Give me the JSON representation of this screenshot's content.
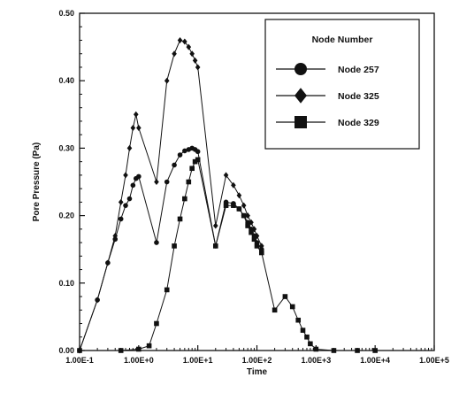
{
  "chart_data": {
    "type": "line",
    "xlabel": "Time",
    "ylabel": "Pore Pressure (Pa)",
    "x_scale": "log",
    "xlim": [
      0.1,
      100000
    ],
    "ylim": [
      0,
      0.5
    ],
    "x_ticks": [
      0.1,
      1,
      10,
      100,
      1000,
      10000,
      100000
    ],
    "x_tick_labels": [
      "1.00E-1",
      "1.00E+0",
      "1.00E+1",
      "1.00E+2",
      "1.00E+3",
      "1.00E+4",
      "1.00E+5"
    ],
    "y_ticks": [
      0,
      0.1,
      0.2,
      0.3,
      0.4,
      0.5
    ],
    "y_tick_labels": [
      "0.00",
      "0.10",
      "0.20",
      "0.30",
      "0.40",
      "0.50"
    ],
    "legend": {
      "title": "Node Number",
      "position": "top-right"
    },
    "series": [
      {
        "name": "Node 257",
        "marker": "circle",
        "points": [
          [
            0.1,
            0.0
          ],
          [
            0.2,
            0.075
          ],
          [
            0.3,
            0.13
          ],
          [
            0.4,
            0.165
          ],
          [
            0.5,
            0.195
          ],
          [
            0.6,
            0.215
          ],
          [
            0.7,
            0.225
          ],
          [
            0.8,
            0.245
          ],
          [
            0.9,
            0.255
          ],
          [
            1.0,
            0.258
          ],
          [
            2.0,
            0.16
          ],
          [
            3.0,
            0.25
          ],
          [
            4.0,
            0.275
          ],
          [
            5.0,
            0.29
          ],
          [
            6.0,
            0.296
          ],
          [
            7.0,
            0.298
          ],
          [
            8.0,
            0.3
          ],
          [
            9.0,
            0.298
          ],
          [
            10.0,
            0.295
          ],
          [
            20.0,
            0.155
          ],
          [
            30.0,
            0.22
          ],
          [
            40.0,
            0.218
          ],
          [
            50.0,
            0.21
          ],
          [
            60.0,
            0.2
          ],
          [
            70.0,
            0.19
          ],
          [
            80.0,
            0.18
          ],
          [
            90.0,
            0.17
          ],
          [
            100.0,
            0.16
          ],
          [
            120.0,
            0.15
          ]
        ]
      },
      {
        "name": "Node 325",
        "marker": "diamond",
        "points": [
          [
            0.1,
            0.0
          ],
          [
            0.2,
            0.075
          ],
          [
            0.3,
            0.13
          ],
          [
            0.4,
            0.17
          ],
          [
            0.5,
            0.22
          ],
          [
            0.6,
            0.26
          ],
          [
            0.7,
            0.3
          ],
          [
            0.8,
            0.33
          ],
          [
            0.9,
            0.35
          ],
          [
            1.0,
            0.33
          ],
          [
            2.0,
            0.25
          ],
          [
            3.0,
            0.4
          ],
          [
            4.0,
            0.44
          ],
          [
            5.0,
            0.46
          ],
          [
            6.0,
            0.458
          ],
          [
            7.0,
            0.45
          ],
          [
            8.0,
            0.44
          ],
          [
            9.0,
            0.43
          ],
          [
            10.0,
            0.42
          ],
          [
            20.0,
            0.185
          ],
          [
            30.0,
            0.26
          ],
          [
            40.0,
            0.245
          ],
          [
            50.0,
            0.23
          ],
          [
            60.0,
            0.215
          ],
          [
            70.0,
            0.2
          ],
          [
            80.0,
            0.19
          ],
          [
            90.0,
            0.18
          ],
          [
            100.0,
            0.17
          ],
          [
            120.0,
            0.155
          ]
        ]
      },
      {
        "name": "Node 329",
        "marker": "square",
        "points": [
          [
            0.1,
            0.0
          ],
          [
            0.5,
            0.0
          ],
          [
            1.0,
            0.002
          ],
          [
            1.5,
            0.007
          ],
          [
            2.0,
            0.04
          ],
          [
            3.0,
            0.09
          ],
          [
            4.0,
            0.155
          ],
          [
            5.0,
            0.195
          ],
          [
            6.0,
            0.225
          ],
          [
            7.0,
            0.25
          ],
          [
            8.0,
            0.27
          ],
          [
            9.0,
            0.28
          ],
          [
            10.0,
            0.283
          ],
          [
            20.0,
            0.155
          ],
          [
            30.0,
            0.215
          ],
          [
            40.0,
            0.215
          ],
          [
            50.0,
            0.21
          ],
          [
            60.0,
            0.2
          ],
          [
            70.0,
            0.185
          ],
          [
            80.0,
            0.175
          ],
          [
            90.0,
            0.165
          ],
          [
            100.0,
            0.155
          ],
          [
            120.0,
            0.145
          ],
          [
            200.0,
            0.06
          ],
          [
            300.0,
            0.08
          ],
          [
            400.0,
            0.065
          ],
          [
            500.0,
            0.045
          ],
          [
            600.0,
            0.03
          ],
          [
            700.0,
            0.02
          ],
          [
            800.0,
            0.01
          ],
          [
            1000.0,
            0.002
          ],
          [
            2000.0,
            0.0
          ],
          [
            5000.0,
            0.0
          ],
          [
            10000.0,
            0.0
          ]
        ]
      }
    ]
  }
}
